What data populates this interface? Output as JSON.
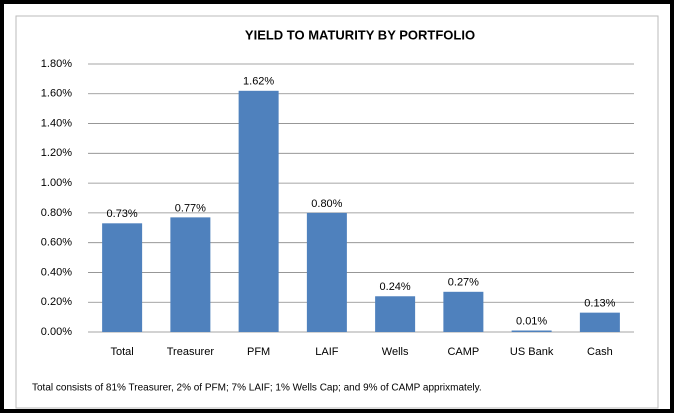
{
  "chart_data": {
    "type": "bar",
    "title": "YIELD TO MATURITY BY PORTFOLIO",
    "categories": [
      "Total",
      "Treasurer",
      "PFM",
      "LAIF",
      "Wells",
      "CAMP",
      "US Bank",
      "Cash"
    ],
    "values": [
      0.73,
      0.77,
      1.62,
      0.8,
      0.24,
      0.27,
      0.01,
      0.13
    ],
    "value_labels": [
      "0.73%",
      "0.77%",
      "1.62%",
      "0.80%",
      "0.24%",
      "0.27%",
      "0.01%",
      "0.13%"
    ],
    "color": "#4f81bd",
    "ylim": [
      0,
      1.8
    ],
    "yticks": [
      {
        "value": 0,
        "label": "0.00%"
      },
      {
        "value": 0.2,
        "label": "0.20%"
      },
      {
        "value": 0.4,
        "label": "0.40%"
      },
      {
        "value": 0.6,
        "label": "0.60%"
      },
      {
        "value": 0.8,
        "label": "0.80%"
      },
      {
        "value": 1.0,
        "label": "1.00%"
      },
      {
        "value": 1.2,
        "label": "1.20%"
      },
      {
        "value": 1.4,
        "label": "1.40%"
      },
      {
        "value": 1.6,
        "label": "1.60%"
      },
      {
        "value": 1.8,
        "label": "1.80%"
      }
    ],
    "grid": true,
    "note": "Total consists of 81% Treasurer, 2% of PFM; 7% LAIF; 1% Wells Cap; and 9% of CAMP apprixmately."
  }
}
